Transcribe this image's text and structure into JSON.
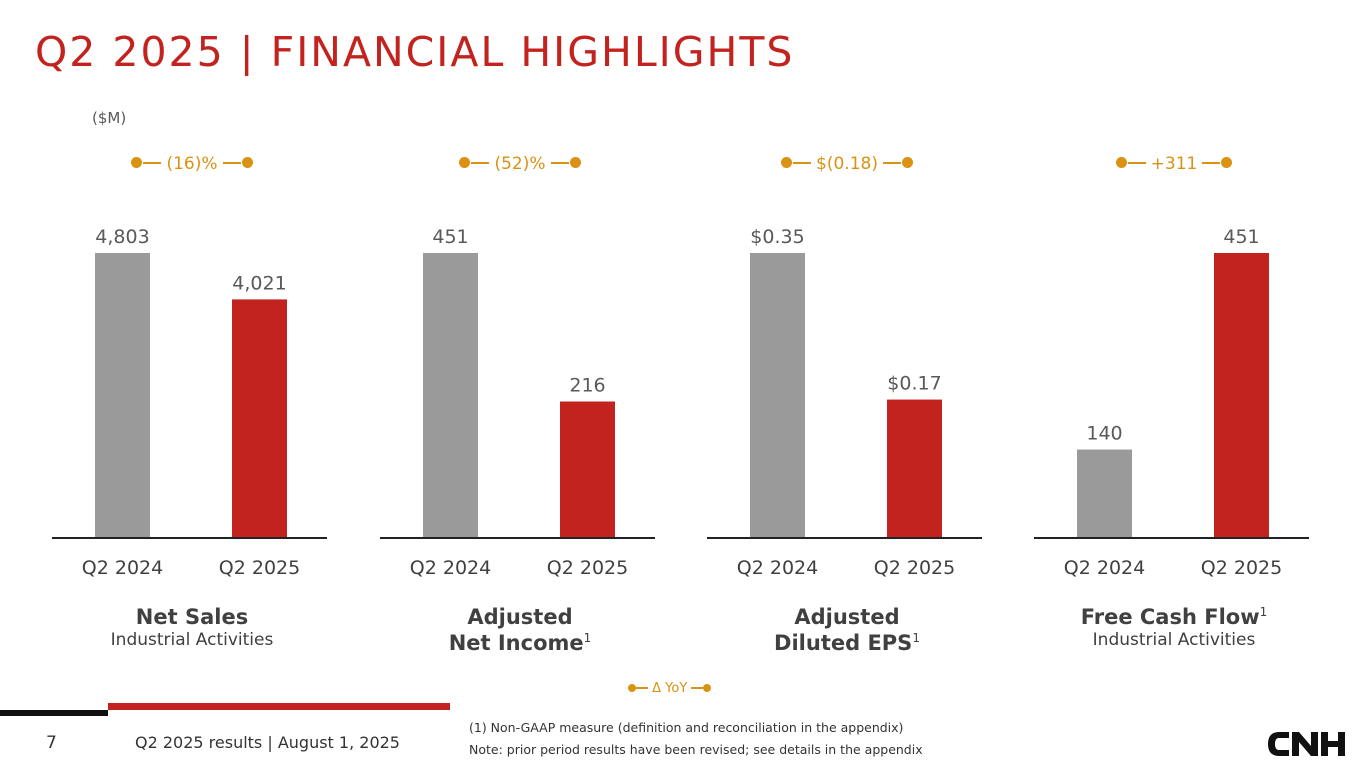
{
  "title": "Q2 2025 | FINANCIAL HIGHLIGHTS",
  "unit_label": "($M)",
  "colors": {
    "accent": "#c3231f",
    "prior": "#9a9a9a",
    "delta": "#d99214"
  },
  "chart_data": [
    {
      "type": "bar",
      "title": "Net Sales",
      "title_sup": "",
      "subtitle": "Industrial Activities",
      "categories": [
        "Q2 2024",
        "Q2 2025"
      ],
      "values": [
        4803,
        4021
      ],
      "labels": [
        "4,803",
        "4,021"
      ],
      "delta": "(16)%",
      "ylim": [
        0,
        4803
      ]
    },
    {
      "type": "bar",
      "title": "Adjusted Net Income",
      "title_line1": "Adjusted",
      "title_line2": "Net Income",
      "title_sup": "1",
      "subtitle": "",
      "categories": [
        "Q2 2024",
        "Q2 2025"
      ],
      "values": [
        451,
        216
      ],
      "labels": [
        "451",
        "216"
      ],
      "delta": "(52)%",
      "ylim": [
        0,
        451
      ]
    },
    {
      "type": "bar",
      "title": "Adjusted Diluted EPS",
      "title_line1": "Adjusted",
      "title_line2": "Diluted EPS",
      "title_sup": "1",
      "subtitle": "",
      "categories": [
        "Q2 2024",
        "Q2 2025"
      ],
      "values": [
        0.35,
        0.17
      ],
      "labels": [
        "$0.35",
        "$0.17"
      ],
      "delta": "$(0.18)",
      "ylim": [
        0,
        0.35
      ]
    },
    {
      "type": "bar",
      "title": "Free Cash Flow",
      "title_sup": "1",
      "subtitle": "Industrial Activities",
      "categories": [
        "Q2 2024",
        "Q2 2025"
      ],
      "values": [
        140,
        451
      ],
      "labels": [
        "140",
        "451"
      ],
      "delta": "+311",
      "ylim": [
        0,
        451
      ]
    }
  ],
  "legend": "Δ YoY",
  "footer": {
    "page_number": "7",
    "text": "Q2 2025 results | August 1, 2025",
    "note1": "(1) Non-GAAP measure (definition and reconciliation in the appendix)",
    "note2": "Note: prior period results have been revised; see details in the appendix",
    "logo": "CNH"
  }
}
